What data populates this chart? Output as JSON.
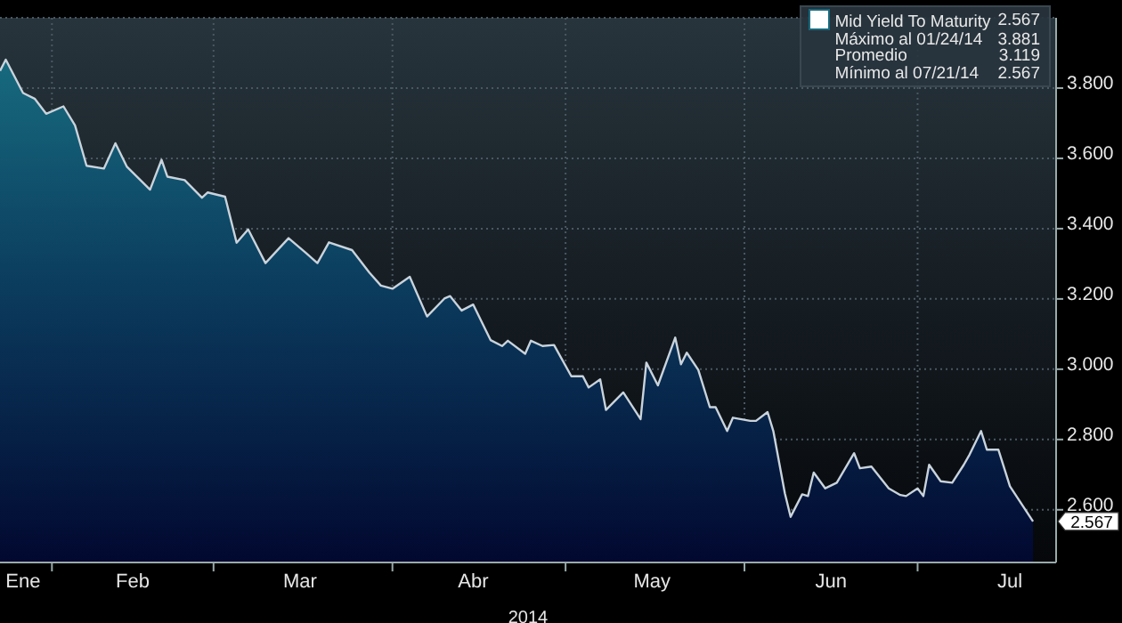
{
  "chart_data": {
    "type": "area",
    "xlabel": "2014",
    "legend": "top right",
    "grid": true,
    "x": [
      "2014-01-23",
      "2014-01-24",
      "2014-01-27",
      "2014-01-29",
      "2014-01-31",
      "2014-02-03",
      "2014-02-05",
      "2014-02-07",
      "2014-02-10",
      "2014-02-12",
      "2014-02-14",
      "2014-02-18",
      "2014-02-20",
      "2014-02-21",
      "2014-02-24",
      "2014-02-27",
      "2014-02-28",
      "2014-03-03",
      "2014-03-05",
      "2014-03-07",
      "2014-03-10",
      "2014-03-14",
      "2014-03-17",
      "2014-03-19",
      "2014-03-21",
      "2014-03-25",
      "2014-03-28",
      "2014-03-30",
      "2014-04-01",
      "2014-04-04",
      "2014-04-07",
      "2014-04-10",
      "2014-04-11",
      "2014-04-13",
      "2014-04-15",
      "2014-04-18",
      "2014-04-20",
      "2014-04-21",
      "2014-04-24",
      "2014-04-25",
      "2014-04-27",
      "2014-04-29",
      "2014-05-02",
      "2014-05-04",
      "2014-05-05",
      "2014-05-07",
      "2014-05-08",
      "2014-05-11",
      "2014-05-14",
      "2014-05-15",
      "2014-05-17",
      "2014-05-20",
      "2014-05-21",
      "2014-05-22",
      "2014-05-24",
      "2014-05-26",
      "2014-05-27",
      "2014-05-29",
      "2014-05-30",
      "2014-06-02",
      "2014-06-03",
      "2014-06-05",
      "2014-06-06",
      "2014-06-08",
      "2014-06-09",
      "2014-06-11",
      "2014-06-12",
      "2014-06-13",
      "2014-06-15",
      "2014-06-17",
      "2014-06-20",
      "2014-06-21",
      "2014-06-23",
      "2014-06-26",
      "2014-06-28",
      "2014-06-29",
      "2014-07-01",
      "2014-07-02",
      "2014-07-03",
      "2014-07-05",
      "2014-07-07",
      "2014-07-09",
      "2014-07-10",
      "2014-07-12",
      "2014-07-13",
      "2014-07-15",
      "2014-07-17",
      "2014-07-21"
    ],
    "series": [
      {
        "name": "Mid Yield To Maturity",
        "color": "#176a7e",
        "values": [
          3.849,
          3.881,
          3.786,
          3.77,
          3.727,
          3.748,
          3.694,
          3.579,
          3.571,
          3.643,
          3.576,
          3.511,
          3.596,
          3.548,
          3.538,
          3.488,
          3.503,
          3.491,
          3.36,
          3.398,
          3.302,
          3.373,
          3.331,
          3.302,
          3.361,
          3.339,
          3.275,
          3.238,
          3.229,
          3.263,
          3.15,
          3.201,
          3.208,
          3.167,
          3.184,
          3.083,
          3.066,
          3.081,
          3.044,
          3.081,
          3.066,
          3.069,
          2.98,
          2.98,
          2.948,
          2.971,
          2.884,
          2.934,
          2.858,
          3.019,
          2.954,
          3.09,
          3.014,
          3.047,
          2.998,
          2.892,
          2.892,
          2.824,
          2.862,
          2.853,
          2.853,
          2.878,
          2.824,
          2.647,
          2.58,
          2.644,
          2.639,
          2.706,
          2.661,
          2.677,
          2.761,
          2.718,
          2.723,
          2.661,
          2.642,
          2.639,
          2.661,
          2.639,
          2.728,
          2.681,
          2.677,
          2.728,
          2.757,
          2.824,
          2.771,
          2.771,
          2.667,
          2.567
        ]
      }
    ],
    "xlim": [
      "2014-01-23",
      "2014-07-25"
    ],
    "xticks": [
      {
        "value": "2014-01-27",
        "label": "Ene"
      },
      {
        "value": "2014-02-01",
        "label": null
      },
      {
        "value": "2014-02-15",
        "label": "Feb"
      },
      {
        "value": "2014-03-01",
        "label": null
      },
      {
        "value": "2014-03-16",
        "label": "Mar"
      },
      {
        "value": "2014-04-01",
        "label": null
      },
      {
        "value": "2014-04-15",
        "label": "Abr"
      },
      {
        "value": "2014-05-01",
        "label": null
      },
      {
        "value": "2014-05-16",
        "label": "May"
      },
      {
        "value": "2014-06-01",
        "label": null
      },
      {
        "value": "2014-06-16",
        "label": "Jun"
      },
      {
        "value": "2014-07-01",
        "label": null
      },
      {
        "value": "2014-07-17",
        "label": "Jul"
      }
    ],
    "ylim": [
      2.45,
      4.0
    ],
    "yticks": [
      {
        "value": 2.6,
        "label": "2.600"
      },
      {
        "value": 2.8,
        "label": "2.800"
      },
      {
        "value": 3.0,
        "label": "3.000"
      },
      {
        "value": 3.2,
        "label": "3.200"
      },
      {
        "value": 3.4,
        "label": "3.400"
      },
      {
        "value": 3.6,
        "label": "3.600"
      },
      {
        "value": 3.8,
        "label": "3.800"
      }
    ],
    "annotations": [
      {
        "text": "2.567",
        "x": "2014-07-21",
        "y": 2.567
      },
      "2.567",
      "Máximo al 01/24/14",
      "3.881",
      "Promedio",
      "3.119",
      "Mínimo al 07/21/14",
      "2.567"
    ]
  }
}
